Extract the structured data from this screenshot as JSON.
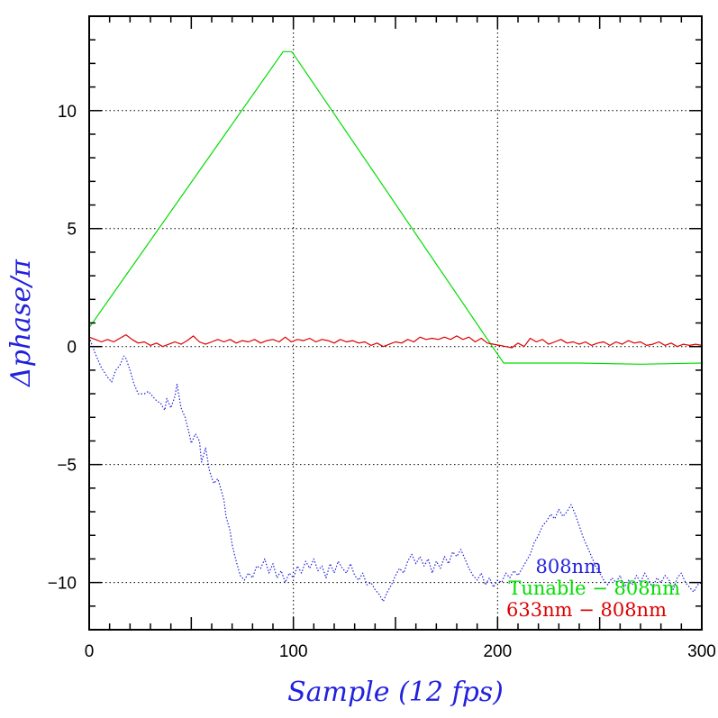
{
  "chart_data": {
    "type": "line",
    "xlabel": "Sample (12 fps)",
    "ylabel": "Δphase/π",
    "xlim": [
      0,
      300
    ],
    "ylim": [
      -12,
      14
    ],
    "x_ticks": [
      0,
      100,
      200,
      300
    ],
    "y_ticks": [
      10,
      5,
      0,
      -5,
      -10
    ],
    "y_tick_labels": [
      "10",
      "5",
      "0",
      "−5",
      "−10"
    ],
    "grid": "dotted at labeled ticks",
    "legend_position": "bottom-right",
    "series": [
      {
        "name": "808nm",
        "color": "#2222dd",
        "style": "dotted",
        "points": [
          [
            0,
            0.4
          ],
          [
            3,
            -0.3
          ],
          [
            6,
            -0.9
          ],
          [
            9,
            -1.3
          ],
          [
            11,
            -1.5
          ],
          [
            13,
            -1.0
          ],
          [
            15,
            -0.8
          ],
          [
            17,
            -0.4
          ],
          [
            18,
            -0.5
          ],
          [
            20,
            -1.0
          ],
          [
            22,
            -1.6
          ],
          [
            24,
            -2.0
          ],
          [
            27,
            -2.0
          ],
          [
            29,
            -1.9
          ],
          [
            31,
            -2.1
          ],
          [
            33,
            -2.3
          ],
          [
            35,
            -2.4
          ],
          [
            37,
            -2.7
          ],
          [
            38,
            -2.2
          ],
          [
            40,
            -2.6
          ],
          [
            42,
            -2.1
          ],
          [
            43,
            -1.6
          ],
          [
            45,
            -2.6
          ],
          [
            47,
            -3.0
          ],
          [
            49,
            -3.7
          ],
          [
            50,
            -4.1
          ],
          [
            52,
            -3.7
          ],
          [
            54,
            -4.0
          ],
          [
            55,
            -4.9
          ],
          [
            57,
            -4.3
          ],
          [
            59,
            -5.3
          ],
          [
            61,
            -5.8
          ],
          [
            63,
            -5.6
          ],
          [
            64,
            -5.9
          ],
          [
            66,
            -6.5
          ],
          [
            67,
            -7.2
          ],
          [
            69,
            -7.8
          ],
          [
            70,
            -8.4
          ],
          [
            72,
            -9.1
          ],
          [
            74,
            -9.7
          ],
          [
            76,
            -9.9
          ],
          [
            78,
            -9.6
          ],
          [
            80,
            -9.8
          ],
          [
            82,
            -9.3
          ],
          [
            84,
            -9.4
          ],
          [
            86,
            -9.0
          ],
          [
            88,
            -9.6
          ],
          [
            90,
            -9.2
          ],
          [
            92,
            -9.8
          ],
          [
            94,
            -9.5
          ],
          [
            96,
            -10.0
          ],
          [
            98,
            -9.6
          ],
          [
            100,
            -9.8
          ],
          [
            102,
            -9.3
          ],
          [
            104,
            -9.6
          ],
          [
            106,
            -9.1
          ],
          [
            108,
            -9.4
          ],
          [
            110,
            -9.0
          ],
          [
            112,
            -9.5
          ],
          [
            114,
            -9.3
          ],
          [
            116,
            -9.8
          ],
          [
            118,
            -9.2
          ],
          [
            120,
            -9.6
          ],
          [
            122,
            -9.1
          ],
          [
            124,
            -9.4
          ],
          [
            126,
            -9.6
          ],
          [
            128,
            -9.2
          ],
          [
            130,
            -9.7
          ],
          [
            132,
            -9.9
          ],
          [
            134,
            -9.6
          ],
          [
            136,
            -10.1
          ],
          [
            138,
            -10.0
          ],
          [
            140,
            -10.3
          ],
          [
            142,
            -10.5
          ],
          [
            144,
            -10.8
          ],
          [
            146,
            -10.4
          ],
          [
            148,
            -10.1
          ],
          [
            150,
            -9.7
          ],
          [
            152,
            -9.4
          ],
          [
            154,
            -9.6
          ],
          [
            156,
            -9.1
          ],
          [
            158,
            -8.8
          ],
          [
            160,
            -9.2
          ],
          [
            162,
            -8.9
          ],
          [
            164,
            -9.3
          ],
          [
            166,
            -9.0
          ],
          [
            168,
            -9.6
          ],
          [
            170,
            -9.1
          ],
          [
            172,
            -9.4
          ],
          [
            174,
            -8.9
          ],
          [
            176,
            -9.2
          ],
          [
            178,
            -8.7
          ],
          [
            180,
            -8.9
          ],
          [
            182,
            -8.6
          ],
          [
            184,
            -9.0
          ],
          [
            186,
            -9.4
          ],
          [
            188,
            -9.7
          ],
          [
            190,
            -9.9
          ],
          [
            192,
            -9.6
          ],
          [
            194,
            -10.1
          ],
          [
            196,
            -9.8
          ],
          [
            198,
            -10.2
          ],
          [
            200,
            -9.9
          ],
          [
            202,
            -10.0
          ],
          [
            204,
            -9.6
          ],
          [
            206,
            -9.8
          ],
          [
            208,
            -9.5
          ],
          [
            210,
            -9.7
          ],
          [
            212,
            -9.4
          ],
          [
            214,
            -9.1
          ],
          [
            216,
            -8.8
          ],
          [
            218,
            -8.3
          ],
          [
            220,
            -8.0
          ],
          [
            222,
            -7.6
          ],
          [
            224,
            -7.4
          ],
          [
            226,
            -7.1
          ],
          [
            228,
            -7.3
          ],
          [
            230,
            -6.9
          ],
          [
            232,
            -7.2
          ],
          [
            234,
            -7.0
          ],
          [
            236,
            -6.7
          ],
          [
            238,
            -7.1
          ],
          [
            240,
            -7.6
          ],
          [
            242,
            -8.1
          ],
          [
            244,
            -8.5
          ],
          [
            246,
            -8.9
          ],
          [
            248,
            -9.3
          ],
          [
            250,
            -9.6
          ],
          [
            252,
            -9.9
          ],
          [
            254,
            -10.1
          ],
          [
            256,
            -9.8
          ],
          [
            258,
            -10.0
          ],
          [
            260,
            -9.7
          ],
          [
            262,
            -10.2
          ],
          [
            264,
            -9.9
          ],
          [
            266,
            -10.1
          ],
          [
            268,
            -9.7
          ],
          [
            270,
            -10.0
          ],
          [
            272,
            -9.6
          ],
          [
            274,
            -9.9
          ],
          [
            276,
            -10.2
          ],
          [
            278,
            -9.8
          ],
          [
            280,
            -10.0
          ],
          [
            282,
            -9.7
          ],
          [
            284,
            -9.9
          ],
          [
            286,
            -10.3
          ],
          [
            288,
            -9.8
          ],
          [
            290,
            -9.6
          ],
          [
            292,
            -10.0
          ],
          [
            294,
            -10.2
          ],
          [
            296,
            -10.4
          ],
          [
            298,
            -10.1
          ],
          [
            300,
            -10.0
          ]
        ]
      },
      {
        "name": "Tunable − 808nm",
        "color": "#00dd00",
        "style": "solid",
        "points": [
          [
            0,
            0.8
          ],
          [
            95,
            12.5
          ],
          [
            99,
            12.5
          ],
          [
            100,
            12.4
          ],
          [
            199,
            -0.2
          ],
          [
            203,
            -0.7
          ],
          [
            215,
            -0.7
          ],
          [
            240,
            -0.7
          ],
          [
            270,
            -0.75
          ],
          [
            300,
            -0.7
          ]
        ]
      },
      {
        "name": "633nm − 808nm",
        "color": "#dd0000",
        "style": "solid",
        "points": [
          [
            0,
            0.4
          ],
          [
            3,
            0.3
          ],
          [
            6,
            0.2
          ],
          [
            9,
            0.3
          ],
          [
            12,
            0.2
          ],
          [
            15,
            0.35
          ],
          [
            18,
            0.5
          ],
          [
            21,
            0.3
          ],
          [
            24,
            0.15
          ],
          [
            27,
            0.2
          ],
          [
            30,
            0.05
          ],
          [
            33,
            0.15
          ],
          [
            36,
            0.0
          ],
          [
            39,
            0.1
          ],
          [
            42,
            0.2
          ],
          [
            45,
            0.1
          ],
          [
            48,
            0.25
          ],
          [
            51,
            0.45
          ],
          [
            54,
            0.2
          ],
          [
            57,
            0.1
          ],
          [
            60,
            0.2
          ],
          [
            63,
            0.3
          ],
          [
            66,
            0.2
          ],
          [
            69,
            0.3
          ],
          [
            72,
            0.15
          ],
          [
            75,
            0.25
          ],
          [
            78,
            0.2
          ],
          [
            81,
            0.3
          ],
          [
            84,
            0.15
          ],
          [
            87,
            0.25
          ],
          [
            90,
            0.3
          ],
          [
            93,
            0.2
          ],
          [
            96,
            0.4
          ],
          [
            99,
            0.2
          ],
          [
            102,
            0.3
          ],
          [
            105,
            0.25
          ],
          [
            108,
            0.35
          ],
          [
            111,
            0.2
          ],
          [
            114,
            0.3
          ],
          [
            117,
            0.25
          ],
          [
            120,
            0.15
          ],
          [
            123,
            0.3
          ],
          [
            126,
            0.2
          ],
          [
            129,
            0.25
          ],
          [
            132,
            0.15
          ],
          [
            135,
            0.2
          ],
          [
            138,
            0.05
          ],
          [
            141,
            0.15
          ],
          [
            144,
            0.0
          ],
          [
            147,
            0.1
          ],
          [
            150,
            0.2
          ],
          [
            153,
            0.15
          ],
          [
            156,
            0.3
          ],
          [
            159,
            0.2
          ],
          [
            162,
            0.4
          ],
          [
            165,
            0.3
          ],
          [
            168,
            0.35
          ],
          [
            171,
            0.3
          ],
          [
            174,
            0.4
          ],
          [
            177,
            0.3
          ],
          [
            180,
            0.45
          ],
          [
            183,
            0.3
          ],
          [
            186,
            0.4
          ],
          [
            189,
            0.2
          ],
          [
            192,
            0.35
          ],
          [
            195,
            0.15
          ],
          [
            198,
            0.1
          ],
          [
            201,
            0.05
          ],
          [
            204,
            0.0
          ],
          [
            207,
            -0.05
          ],
          [
            210,
            0.15
          ],
          [
            213,
            0.0
          ],
          [
            216,
            0.35
          ],
          [
            219,
            0.2
          ],
          [
            222,
            0.3
          ],
          [
            225,
            0.1
          ],
          [
            228,
            0.2
          ],
          [
            231,
            0.3
          ],
          [
            234,
            0.15
          ],
          [
            237,
            0.2
          ],
          [
            240,
            0.1
          ],
          [
            243,
            0.2
          ],
          [
            246,
            0.05
          ],
          [
            249,
            0.15
          ],
          [
            252,
            0.2
          ],
          [
            255,
            0.05
          ],
          [
            258,
            0.2
          ],
          [
            261,
            0.1
          ],
          [
            264,
            0.25
          ],
          [
            267,
            0.15
          ],
          [
            270,
            0.2
          ],
          [
            273,
            0.05
          ],
          [
            276,
            0.1
          ],
          [
            279,
            0.2
          ],
          [
            282,
            0.05
          ],
          [
            285,
            0.15
          ],
          [
            288,
            0.0
          ],
          [
            291,
            0.1
          ],
          [
            294,
            0.05
          ],
          [
            297,
            0.1
          ],
          [
            300,
            0.05
          ]
        ]
      }
    ]
  }
}
